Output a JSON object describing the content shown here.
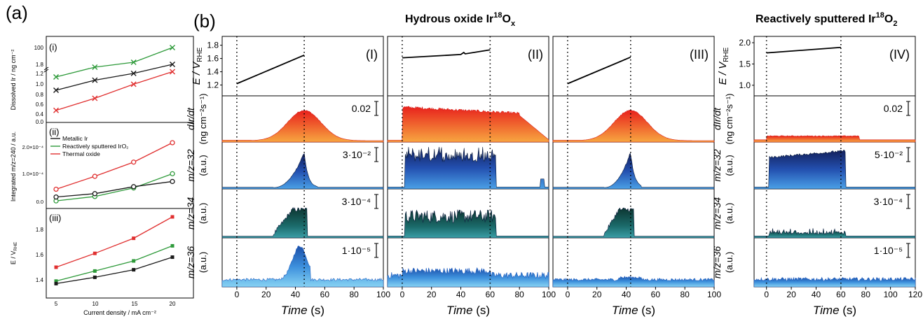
{
  "figure": {
    "label_a": "(a)",
    "label_b": "(b)",
    "title_hydrous_main": "Hydrous oxide Ir",
    "title_hydrous_sup": "18",
    "title_hydrous_sub": "x",
    "title_hydrous_o": "O",
    "title_sputtered_main": "Reactively sputtered Ir",
    "title_sputtered_sup": "18",
    "title_sputtered_o": "O",
    "title_sputtered_sub": "2"
  },
  "panel_a": {
    "xlabel": "Current density / mA cm⁻²",
    "x_ticks": [
      "5",
      "10",
      "15",
      "20"
    ],
    "colors": {
      "metallic": "#1a1a1a",
      "sputtered": "#2e9a3a",
      "thermal": "#e03030"
    },
    "sub_i": {
      "label": "(i)",
      "ylabel": "Dissolved Ir / ng cm⁻²",
      "y_ticks": [
        "0.0",
        "0.2",
        "0.4",
        "0.6",
        "0.8",
        "1.0",
        "1.2",
        "1.8",
        "100"
      ],
      "sputtered": [
        40,
        60,
        70,
        100
      ],
      "metallic": [
        0.8,
        1.05,
        1.25,
        1.8
      ],
      "thermal": [
        0.3,
        0.6,
        0.95,
        1.35
      ]
    },
    "sub_ii": {
      "label": "(ii)",
      "ylabel": "Integrated m/z=240 / a.u.",
      "y_ticks": [
        "0.0",
        "1.0×10⁻⁴",
        "2.0×10⁻⁴"
      ],
      "legend": [
        "Metallic Ir",
        "Reactively sputtered IrO₂",
        "Thermal oxide"
      ],
      "thermal": [
        0.5,
        1.0,
        1.55,
        2.3
      ],
      "sputtered": [
        0.05,
        0.22,
        0.55,
        1.1
      ],
      "metallic": [
        0.2,
        0.33,
        0.6,
        0.8
      ]
    },
    "sub_iii": {
      "label": "(iii)",
      "ylabel": "E / V",
      "ylabel_sub": "RHE",
      "y_ticks": [
        "1.4",
        "1.6",
        "1.8"
      ],
      "thermal": [
        1.5,
        1.61,
        1.73,
        1.9
      ],
      "sputtered": [
        1.39,
        1.47,
        1.55,
        1.67
      ],
      "metallic": [
        1.37,
        1.42,
        1.48,
        1.58
      ]
    }
  },
  "panel_b": {
    "row_labels": [
      {
        "main": "E / V",
        "sub": "RHE"
      },
      {
        "main": "dIr/dt",
        "unit": "(ng cm⁻²s⁻¹)"
      },
      {
        "main": "m/z=32",
        "unit": "(a.u.)"
      },
      {
        "main": "m/z=34",
        "unit": "(a.u.)"
      },
      {
        "main": "m/z=36",
        "unit": "(a.u.)"
      }
    ],
    "x_label_main": "Time",
    "x_label_unit": " (s)",
    "columns": [
      {
        "id": "I",
        "roman": "(I)",
        "xlim": [
          -10,
          100
        ],
        "x_ticks": [
          "0",
          "20",
          "40",
          "60",
          "80",
          "100"
        ],
        "vlines": [
          0,
          46
        ],
        "e_ticks": [
          "1.2",
          "1.4",
          "1.6",
          "1.8"
        ],
        "e_lim": [
          1.1,
          1.87
        ],
        "e_curve": [
          [
            0,
            1.22
          ],
          [
            46,
            1.65
          ]
        ],
        "scale_labels": [
          "0.02",
          "3·10⁻²",
          "3·10⁻⁴",
          "1·10⁻⁵"
        ],
        "shape": "peak",
        "peak": 46,
        "end": 55
      },
      {
        "id": "II",
        "roman": "(II)",
        "xlim": [
          -10,
          100
        ],
        "x_ticks": [
          "0",
          "20",
          "40",
          "60",
          "80",
          "100"
        ],
        "vlines": [
          0,
          60
        ],
        "e_curve": [
          [
            0,
            1.61
          ],
          [
            40,
            1.66
          ],
          [
            42,
            1.69
          ],
          [
            43,
            1.67
          ],
          [
            60,
            1.73
          ]
        ],
        "scale_labels": [],
        "shape": "plateau",
        "peak": 60,
        "end": 62
      },
      {
        "id": "III",
        "roman": "(III)",
        "xlim": [
          -10,
          100
        ],
        "x_ticks": [
          "0",
          "20",
          "40",
          "60",
          "80",
          "100"
        ],
        "vlines": [
          0,
          43
        ],
        "e_curve": [
          [
            0,
            1.22
          ],
          [
            43,
            1.62
          ]
        ],
        "scale_labels": [],
        "shape": "peak",
        "peak": 43,
        "end": 50
      },
      {
        "id": "IV",
        "roman": "(IV)",
        "xlim": [
          -10,
          120
        ],
        "x_ticks": [
          "0",
          "20",
          "40",
          "60",
          "80",
          "100",
          "120"
        ],
        "vlines": [
          0,
          60
        ],
        "e_ticks": [
          "1.0",
          "1.5",
          "2.0"
        ],
        "e_lim": [
          0.85,
          2.05
        ],
        "e_curve": [
          [
            0,
            1.76
          ],
          [
            60,
            1.89
          ]
        ],
        "scale_labels": [
          "0.02",
          "5·10⁻²",
          "3·10⁻⁴",
          "1·10⁻⁵"
        ],
        "shape": "plateau",
        "peak": 60,
        "end": 62
      }
    ]
  },
  "chart_data": [
    {
      "type": "line",
      "title": "(a)(i)",
      "xlabel": "Current density / mA cm⁻²",
      "ylabel": "Dissolved Ir / ng cm⁻²",
      "x": [
        5,
        10,
        15,
        20
      ],
      "series": [
        {
          "name": "Metallic Ir",
          "values": [
            0.8,
            1.05,
            1.25,
            1.8
          ]
        },
        {
          "name": "Reactively sputtered IrO₂",
          "values": [
            40,
            60,
            70,
            100
          ]
        },
        {
          "name": "Thermal oxide",
          "values": [
            0.3,
            0.6,
            0.95,
            1.35
          ]
        }
      ]
    },
    {
      "type": "line",
      "title": "(a)(ii)",
      "xlabel": "Current density / mA cm⁻²",
      "ylabel": "Integrated m/z=240 / a.u.",
      "x": [
        5,
        10,
        15,
        20
      ],
      "series": [
        {
          "name": "Metallic Ir",
          "values": [
            2e-05,
            3.3e-05,
            6e-05,
            8e-05
          ]
        },
        {
          "name": "Reactively sputtered IrO₂",
          "values": [
            5e-06,
            2.2e-05,
            5.5e-05,
            0.00011
          ]
        },
        {
          "name": "Thermal oxide",
          "values": [
            5e-05,
            0.0001,
            0.000155,
            0.00023
          ]
        }
      ]
    },
    {
      "type": "line",
      "title": "(a)(iii)",
      "xlabel": "Current density / mA cm⁻²",
      "ylabel": "E / V RHE",
      "x": [
        5,
        10,
        15,
        20
      ],
      "series": [
        {
          "name": "Metallic Ir",
          "values": [
            1.37,
            1.42,
            1.48,
            1.58
          ]
        },
        {
          "name": "Reactively sputtered IrO₂",
          "values": [
            1.39,
            1.47,
            1.55,
            1.67
          ]
        },
        {
          "name": "Thermal oxide",
          "values": [
            1.5,
            1.61,
            1.73,
            1.9
          ]
        }
      ]
    },
    {
      "type": "area",
      "title": "(b)",
      "xlabel": "Time (s)",
      "panels": [
        "(I)",
        "(II)",
        "(III)",
        "(IV)"
      ],
      "rows": [
        "E / V RHE",
        "dIr/dt",
        "m/z=32",
        "m/z=34",
        "m/z=36"
      ]
    }
  ]
}
